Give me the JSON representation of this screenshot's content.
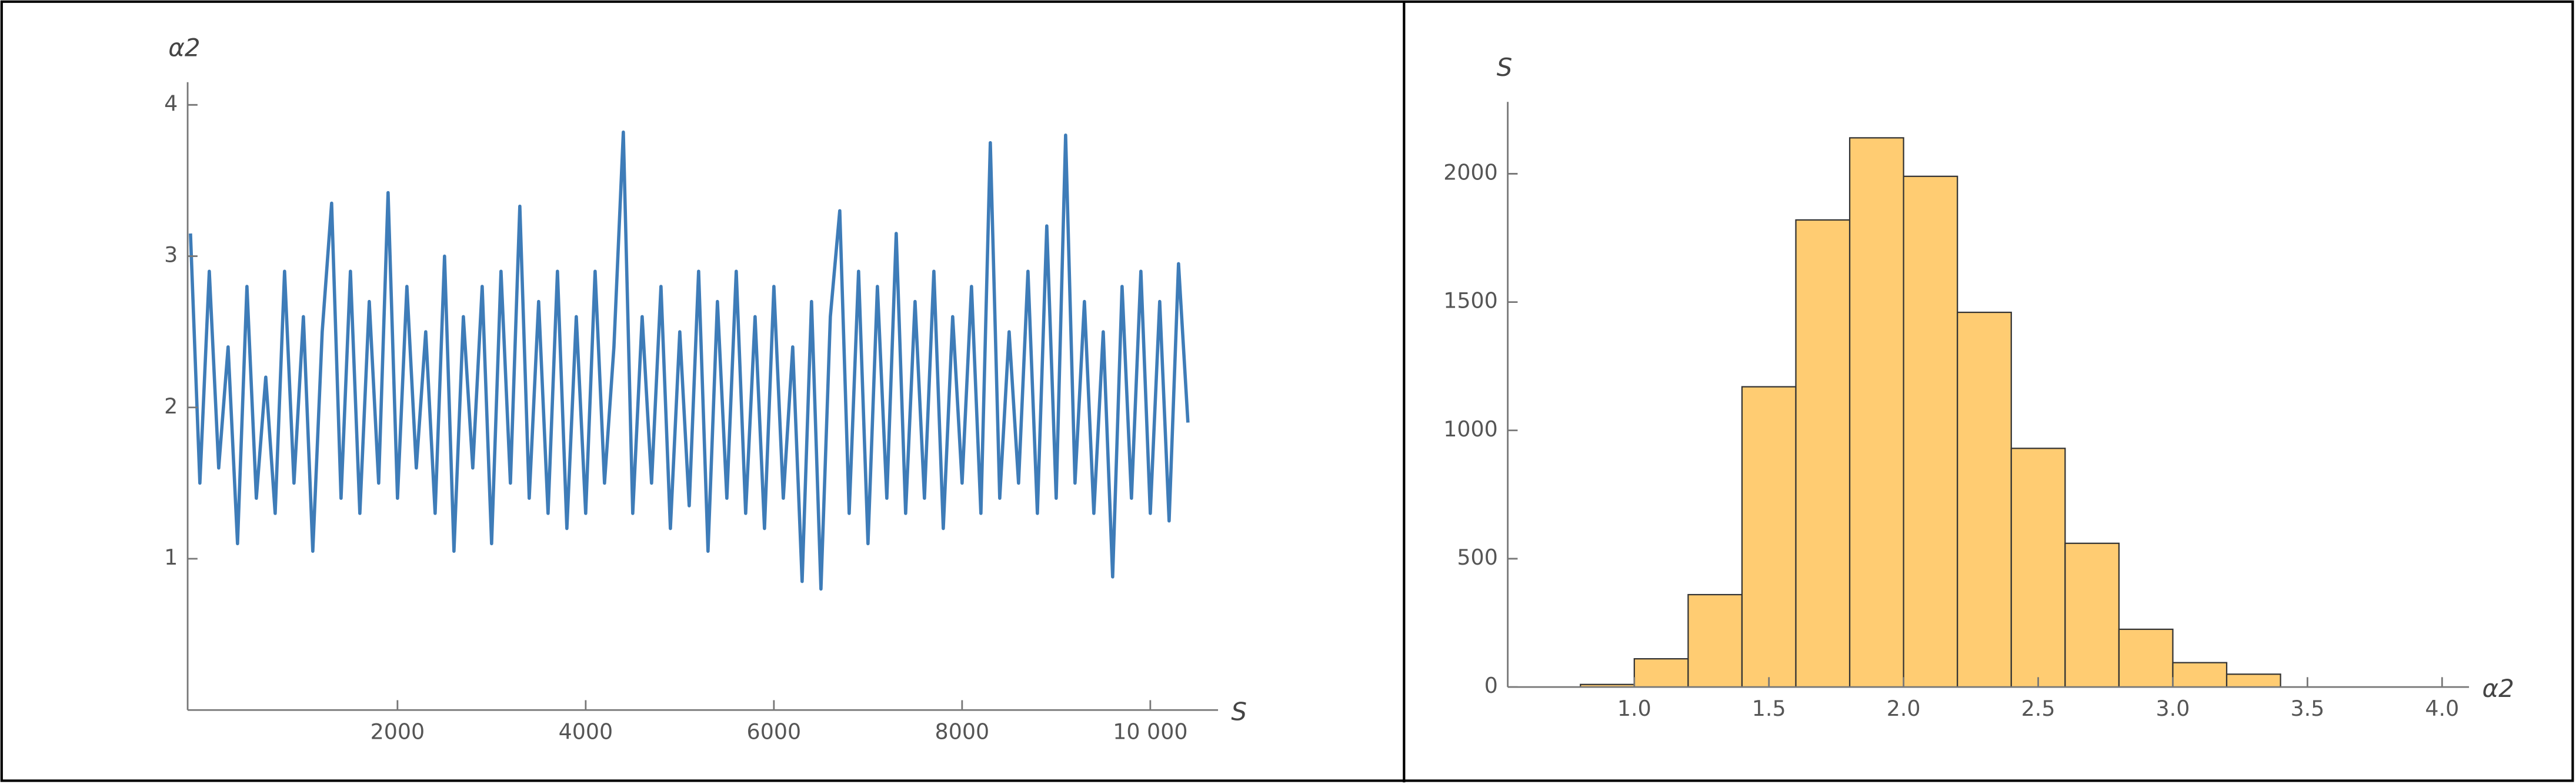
{
  "chart_data": [
    {
      "type": "line",
      "x_label": "S",
      "y_label": "α2",
      "color": "#3e7cb8",
      "x": [
        -200,
        -100,
        0,
        100,
        200,
        300,
        400,
        500,
        600,
        700,
        800,
        900,
        1000,
        1100,
        1200,
        1300,
        1400,
        1500,
        1600,
        1700,
        1800,
        1900,
        2000,
        2100,
        2200,
        2300,
        2400,
        2500,
        2600,
        2700,
        2800,
        2900,
        3000,
        3100,
        3200,
        3300,
        3400,
        3500,
        3600,
        3700,
        3800,
        3900,
        4000,
        4100,
        4200,
        4300,
        4400,
        4500,
        4600,
        4700,
        4800,
        4900,
        5000,
        5100,
        5200,
        5300,
        5400,
        5500,
        5600,
        5700,
        5800,
        5900,
        6000,
        6100,
        6200,
        6300,
        6400,
        6500,
        6600,
        6700,
        6800,
        6900,
        7000,
        7100,
        7200,
        7300,
        7400,
        7500,
        7600,
        7700,
        7800,
        7900,
        8000,
        8100,
        8200,
        8300,
        8400,
        8500,
        8600,
        8700,
        8800,
        8900,
        9000,
        9100,
        9200,
        9300,
        9400,
        9500,
        9600,
        9700,
        9800,
        9900,
        10000,
        10100,
        10200,
        10300,
        10400
      ],
      "values": [
        3.15,
        1.5,
        2.9,
        1.6,
        2.4,
        1.1,
        2.8,
        1.4,
        2.2,
        1.3,
        2.9,
        1.5,
        2.6,
        1.05,
        2.5,
        3.35,
        1.4,
        2.9,
        1.3,
        2.7,
        1.5,
        3.42,
        1.4,
        2.8,
        1.6,
        2.5,
        1.3,
        3.0,
        1.05,
        2.6,
        1.6,
        2.8,
        1.1,
        2.9,
        1.5,
        3.33,
        1.4,
        2.7,
        1.3,
        2.9,
        1.2,
        2.6,
        1.3,
        2.9,
        1.5,
        2.4,
        3.82,
        1.3,
        2.6,
        1.5,
        2.8,
        1.2,
        2.5,
        1.35,
        2.9,
        1.05,
        2.7,
        1.4,
        2.9,
        1.3,
        2.6,
        1.2,
        2.8,
        1.4,
        2.4,
        0.85,
        2.7,
        0.8,
        2.6,
        3.3,
        1.3,
        2.9,
        1.1,
        2.8,
        1.4,
        3.15,
        1.3,
        2.7,
        1.4,
        2.9,
        1.2,
        2.6,
        1.5,
        2.8,
        1.3,
        3.75,
        1.4,
        2.5,
        1.5,
        2.9,
        1.3,
        3.2,
        1.4,
        3.8,
        1.5,
        2.7,
        1.3,
        2.5,
        0.88,
        2.8,
        1.4,
        2.9,
        1.3,
        2.7,
        1.25,
        2.95,
        1.9
      ],
      "xlim": [
        -230,
        10720
      ],
      "ylim": [
        0,
        4.15
      ],
      "xticks": [
        2000,
        4000,
        6000,
        8000,
        {
          "value": 10000,
          "label": "10 000"
        }
      ],
      "yticks": [
        1,
        2,
        3,
        4
      ]
    },
    {
      "type": "histogram",
      "x_label": "α2",
      "y_label": "S",
      "color": "#ffcc72",
      "edgecolor": "#333333",
      "bins": [
        0.8,
        1.0,
        1.2,
        1.4,
        1.6,
        1.8,
        2.0,
        2.2,
        2.4,
        2.6,
        2.8,
        3.0,
        3.2,
        3.4
      ],
      "counts": [
        10,
        110,
        360,
        1170,
        1820,
        2140,
        1990,
        1460,
        930,
        560,
        225,
        95,
        50
      ],
      "xlim": [
        0.53,
        4.1
      ],
      "ylim": [
        0,
        2280
      ],
      "xticks": [
        {
          "value": 1,
          "label": "1.0"
        },
        1.5,
        {
          "value": 2,
          "label": "2.0"
        },
        2.5,
        {
          "value": 3,
          "label": "3.0"
        },
        3.5,
        {
          "value": 4,
          "label": "4.0"
        }
      ],
      "yticks": [
        0,
        500,
        1000,
        1500,
        2000
      ]
    }
  ]
}
